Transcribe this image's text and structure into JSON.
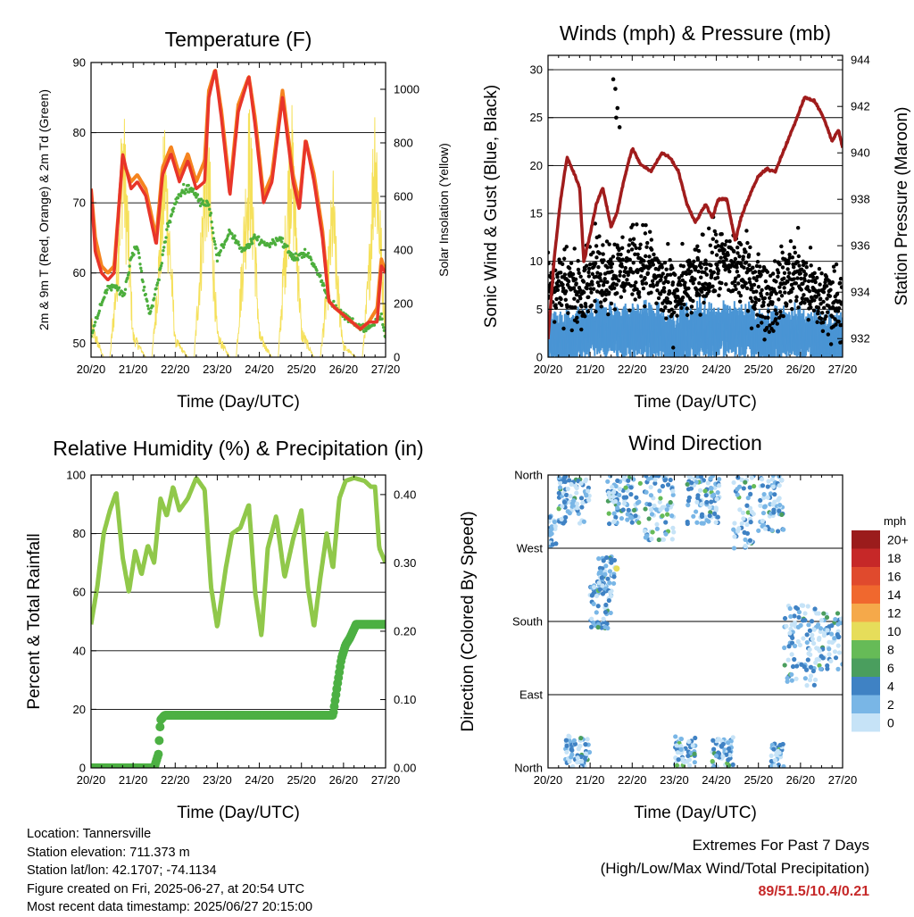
{
  "info": {
    "location": "Location: Tannersville",
    "elevation": "Station elevation: 711.373 m",
    "latlon": "Station lat/lon: 42.1707; -74.1134",
    "created": "Figure created on Fri, 2025-06-27, at 20:54 UTC",
    "recent": "Most recent data timestamp: 2025/06/27 20:15:00"
  },
  "extremes": {
    "line1": "Extremes For Past 7 Days",
    "line2": "(High/Low/Max Wind/Total Precipitation)",
    "value": "89/51.5/10.4/0.21"
  },
  "colors": {
    "temp2m": "#e8352a",
    "temp9m": "#f5841f",
    "dewpoint": "#4cae3c",
    "insolation": "#f5e05a",
    "gust": "#000000",
    "wind": "#4a95d4",
    "pressure": "#a01c1c",
    "rh": "#90c84a",
    "precip": "#4cb043"
  },
  "chart_data": [
    {
      "type": "line",
      "title": "Temperature (F)",
      "xlabel": "Time (Day/UTC)",
      "ylabel": "2m & 9m T (Red, Orange) & 2m Td (Green)",
      "ylabel2": "Solar Insolation (Yellow)",
      "xticks": [
        "20/20",
        "21/20",
        "22/20",
        "23/20",
        "24/20",
        "25/20",
        "26/20",
        "27/20"
      ],
      "xlim": [
        0,
        7
      ],
      "ylim": [
        48,
        90
      ],
      "yticks": [
        50,
        60,
        70,
        80,
        90
      ],
      "ylim2": [
        0,
        1100
      ],
      "yticks2": [
        0,
        200,
        400,
        600,
        800,
        1000
      ],
      "grid": true,
      "series": [
        {
          "axis": "left",
          "color_key": "temp9m",
          "x": [
            0,
            0.1,
            0.25,
            0.4,
            0.55,
            0.75,
            0.95,
            1.1,
            1.3,
            1.55,
            1.7,
            1.9,
            2.1,
            2.3,
            2.5,
            2.7,
            2.8,
            2.95,
            3.1,
            3.3,
            3.5,
            3.75,
            3.9,
            4.1,
            4.3,
            4.55,
            4.8,
            4.95,
            5.1,
            5.3,
            5.5,
            5.65,
            5.8,
            6.0,
            6.2,
            6.4,
            6.6,
            6.8,
            6.9,
            7.0
          ],
          "y": [
            72,
            65,
            61,
            60,
            61,
            76,
            73,
            74,
            72,
            65,
            75,
            78,
            74,
            77,
            73,
            76,
            86,
            89,
            83,
            72,
            84,
            88,
            82,
            71,
            74,
            86,
            74,
            70,
            79,
            74,
            66,
            56,
            55,
            54,
            53,
            52,
            53,
            55,
            62,
            60
          ]
        },
        {
          "axis": "left",
          "color_key": "temp2m",
          "x": [
            0,
            0.1,
            0.25,
            0.4,
            0.55,
            0.75,
            0.95,
            1.1,
            1.3,
            1.55,
            1.7,
            1.9,
            2.1,
            2.3,
            2.5,
            2.7,
            2.8,
            2.95,
            3.1,
            3.3,
            3.5,
            3.75,
            3.9,
            4.1,
            4.3,
            4.55,
            4.8,
            4.95,
            5.1,
            5.3,
            5.5,
            5.65,
            5.8,
            6.0,
            6.2,
            6.4,
            6.6,
            6.8,
            6.9,
            7.0
          ],
          "y": [
            72,
            63,
            60,
            59,
            60,
            77,
            72,
            73,
            71,
            64,
            74,
            77,
            73,
            76,
            72,
            73,
            85,
            89,
            82,
            71,
            83,
            88,
            81,
            70,
            73,
            85,
            73,
            69,
            79,
            73,
            65,
            56,
            55,
            54,
            53,
            52,
            53,
            53,
            61,
            60
          ]
        },
        {
          "axis": "left",
          "color_key": "dewpoint",
          "x": [
            0,
            0.2,
            0.4,
            0.6,
            0.8,
            0.95,
            1.1,
            1.25,
            1.4,
            1.6,
            1.8,
            2.0,
            2.2,
            2.4,
            2.6,
            2.8,
            3.0,
            3.3,
            3.6,
            3.9,
            4.2,
            4.5,
            4.8,
            5.1,
            5.4,
            5.6,
            5.8,
            6.0,
            6.2,
            6.5,
            6.8,
            6.9,
            7.0
          ],
          "y": [
            51,
            55,
            58,
            58,
            57,
            62,
            64,
            58,
            54,
            59,
            66,
            70,
            72,
            72,
            70,
            70,
            62,
            66,
            63,
            65,
            64,
            65,
            62,
            63,
            60,
            57,
            55,
            54,
            53,
            52,
            53,
            54,
            51
          ]
        },
        {
          "axis": "right",
          "color_key": "insolation",
          "x": [
            0,
            0.3,
            0.45,
            0.6,
            0.75,
            0.85,
            1.0,
            1.3,
            1.45,
            1.6,
            1.75,
            1.85,
            2.0,
            2.3,
            2.45,
            2.6,
            2.75,
            2.85,
            3.0,
            3.3,
            3.45,
            3.6,
            3.75,
            3.85,
            4.0,
            4.3,
            4.45,
            4.6,
            4.75,
            4.85,
            5.0,
            5.3,
            5.45,
            5.6,
            5.75,
            5.85,
            6.0,
            6.3,
            6.45,
            6.6,
            6.75,
            6.85,
            7.0
          ],
          "y": [
            150,
            0,
            0,
            350,
            1000,
            700,
            100,
            0,
            0,
            400,
            900,
            600,
            80,
            0,
            0,
            450,
            950,
            650,
            100,
            0,
            0,
            450,
            950,
            700,
            100,
            0,
            0,
            480,
            980,
            700,
            120,
            0,
            0,
            300,
            700,
            350,
            50,
            0,
            0,
            380,
            1050,
            650,
            120
          ]
        }
      ]
    },
    {
      "type": "scatter",
      "title": "Winds (mph) & Pressure (mb)",
      "xlabel": "Time (Day/UTC)",
      "ylabel": "Sonic Wind & Gust (Blue, Black)",
      "ylabel2": "Station Pressure (Maroon)",
      "xticks": [
        "20/20",
        "21/20",
        "22/20",
        "23/20",
        "24/20",
        "25/20",
        "26/20",
        "27/20"
      ],
      "xlim": [
        0,
        7
      ],
      "ylim": [
        0,
        31.5
      ],
      "yticks": [
        0,
        5,
        10,
        15,
        20,
        25,
        30
      ],
      "ylim2": [
        931.2,
        944.2
      ],
      "yticks2": [
        932,
        934,
        936,
        938,
        940,
        942,
        944
      ],
      "grid": true,
      "series": [
        {
          "name": "Gust",
          "axis": "left",
          "color_key": "gust",
          "mean_profile": [
            8,
            7,
            9,
            9,
            10,
            6,
            8,
            10,
            9,
            6,
            9,
            6,
            6
          ],
          "spread": 6,
          "x": [
            1.55,
            1.6,
            1.62,
            1.65,
            1.7
          ],
          "y": [
            29,
            28,
            25,
            26,
            24
          ]
        },
        {
          "name": "Wind",
          "axis": "left",
          "color_key": "wind",
          "mean_profile": [
            3,
            3,
            4,
            4,
            4,
            3,
            4,
            4,
            4,
            3,
            4,
            3,
            3
          ],
          "spread": 2
        },
        {
          "name": "Pressure",
          "axis": "right",
          "color_key": "pressure",
          "x": [
            0,
            0.15,
            0.3,
            0.45,
            0.6,
            0.75,
            0.85,
            1.0,
            1.15,
            1.3,
            1.5,
            1.65,
            1.8,
            2.0,
            2.2,
            2.45,
            2.7,
            2.9,
            3.1,
            3.3,
            3.5,
            3.75,
            3.9,
            4.05,
            4.25,
            4.45,
            4.6,
            4.8,
            5.0,
            5.2,
            5.4,
            5.6,
            5.85,
            6.1,
            6.35,
            6.55,
            6.75,
            6.9,
            7.0
          ],
          "y": [
            932,
            935.5,
            938,
            939.8,
            939.2,
            938.5,
            935.3,
            936.5,
            937.8,
            938.5,
            936.8,
            937.5,
            938.8,
            940.2,
            939.5,
            939.2,
            940.0,
            939.8,
            939.2,
            937.8,
            937.0,
            937.8,
            937.2,
            938.0,
            938.0,
            936.2,
            937.3,
            938.2,
            939.0,
            939.3,
            939.2,
            940.1,
            941.2,
            942.4,
            942.2,
            941.5,
            940.5,
            941.0,
            940.2
          ]
        }
      ]
    },
    {
      "type": "line",
      "title": "Relative Humidity (%) & Precipitation (in)",
      "xlabel": "Time (Day/UTC)",
      "ylabel": "Percent & Total Rainfall",
      "xticks": [
        "20/20",
        "21/20",
        "22/20",
        "23/20",
        "24/20",
        "25/20",
        "26/20",
        "27/20"
      ],
      "xlim": [
        0,
        7
      ],
      "ylim": [
        0,
        100
      ],
      "yticks": [
        0,
        20,
        40,
        60,
        80,
        100
      ],
      "ylim2": [
        0,
        0.4286
      ],
      "yticks2": [
        0.0,
        0.1,
        0.2,
        0.3,
        0.4
      ],
      "yticklabels2": [
        "0.00",
        "0.10",
        "0.20",
        "0.30",
        "0.40"
      ],
      "grid": true,
      "series": [
        {
          "axis": "left",
          "color_key": "rh",
          "x": [
            0,
            0.15,
            0.3,
            0.45,
            0.6,
            0.75,
            0.9,
            1.05,
            1.2,
            1.35,
            1.5,
            1.65,
            1.8,
            1.95,
            2.1,
            2.3,
            2.5,
            2.7,
            2.85,
            3.0,
            3.2,
            3.35,
            3.55,
            3.75,
            3.9,
            4.05,
            4.2,
            4.4,
            4.6,
            4.8,
            5.0,
            5.15,
            5.3,
            5.45,
            5.6,
            5.75,
            5.9,
            6.05,
            6.25,
            6.5,
            6.65,
            6.75,
            6.85,
            7.0
          ],
          "y": [
            49,
            62,
            80,
            88,
            94,
            72,
            60,
            74,
            66,
            76,
            70,
            92,
            86,
            96,
            88,
            92,
            99,
            95,
            62,
            48,
            68,
            80,
            82,
            90,
            60,
            45,
            75,
            86,
            65,
            78,
            88,
            62,
            48,
            65,
            80,
            68,
            92,
            98,
            99,
            98,
            96,
            96,
            75,
            70
          ]
        },
        {
          "axis": "right",
          "color_key": "precip",
          "x": [
            0,
            1.5,
            1.6,
            1.65,
            1.75,
            5.75,
            5.85,
            5.95,
            6.05,
            6.15,
            6.3,
            7.0
          ],
          "y": [
            0.0,
            0.0,
            0.02,
            0.07,
            0.077,
            0.077,
            0.12,
            0.16,
            0.18,
            0.19,
            0.21,
            0.21
          ]
        }
      ]
    },
    {
      "type": "scatter",
      "title": "Wind Direction",
      "xlabel": "Time (Day/UTC)",
      "ylabel": "Direction (Colored By Speed)",
      "xticks": [
        "20/20",
        "21/20",
        "22/20",
        "23/20",
        "24/20",
        "25/20",
        "26/20",
        "27/20"
      ],
      "xlim": [
        0,
        7
      ],
      "ylim": [
        0,
        360
      ],
      "yticks": [
        0,
        90,
        180,
        270,
        360
      ],
      "yticklabels": [
        "North",
        "East",
        "South",
        "West",
        "North"
      ],
      "grid": true,
      "legend": {
        "title": "mph",
        "labels": [
          "20+",
          "18",
          "16",
          "14",
          "12",
          "10",
          "8",
          "6",
          "4",
          "2",
          "0"
        ],
        "colors": [
          "#9b1c1c",
          "#c62828",
          "#e04a2d",
          "#f0682e",
          "#f5a94a",
          "#e6dd5a",
          "#66bb57",
          "#4a9e5e",
          "#3f82c4",
          "#79b6e6",
          "#c6e3f7"
        ],
        "position": "right"
      },
      "clusters": [
        {
          "x": [
            0.0,
            0.2
          ],
          "y": [
            270,
            310
          ]
        },
        {
          "x": [
            0.25,
            1.0
          ],
          "y": [
            300,
            360
          ]
        },
        {
          "x": [
            0.4,
            1.0
          ],
          "y": [
            0,
            40
          ]
        },
        {
          "x": [
            1.0,
            1.5
          ],
          "y": [
            170,
            230
          ]
        },
        {
          "x": [
            1.15,
            1.6
          ],
          "y": [
            210,
            260
          ]
        },
        {
          "x": [
            1.4,
            2.2
          ],
          "y": [
            300,
            360
          ]
        },
        {
          "x": [
            2.3,
            3.0
          ],
          "y": [
            280,
            360
          ]
        },
        {
          "x": [
            3.0,
            3.5
          ],
          "y": [
            0,
            40
          ]
        },
        {
          "x": [
            3.3,
            4.1
          ],
          "y": [
            300,
            360
          ]
        },
        {
          "x": [
            3.9,
            4.4
          ],
          "y": [
            0,
            40
          ]
        },
        {
          "x": [
            4.4,
            4.9
          ],
          "y": [
            270,
            360
          ]
        },
        {
          "x": [
            5.0,
            5.6
          ],
          "y": [
            290,
            360
          ]
        },
        {
          "x": [
            5.3,
            5.6
          ],
          "y": [
            0,
            30
          ]
        },
        {
          "x": [
            5.6,
            6.4
          ],
          "y": [
            100,
            200
          ]
        },
        {
          "x": [
            6.4,
            7.0
          ],
          "y": [
            120,
            190
          ]
        }
      ]
    }
  ]
}
